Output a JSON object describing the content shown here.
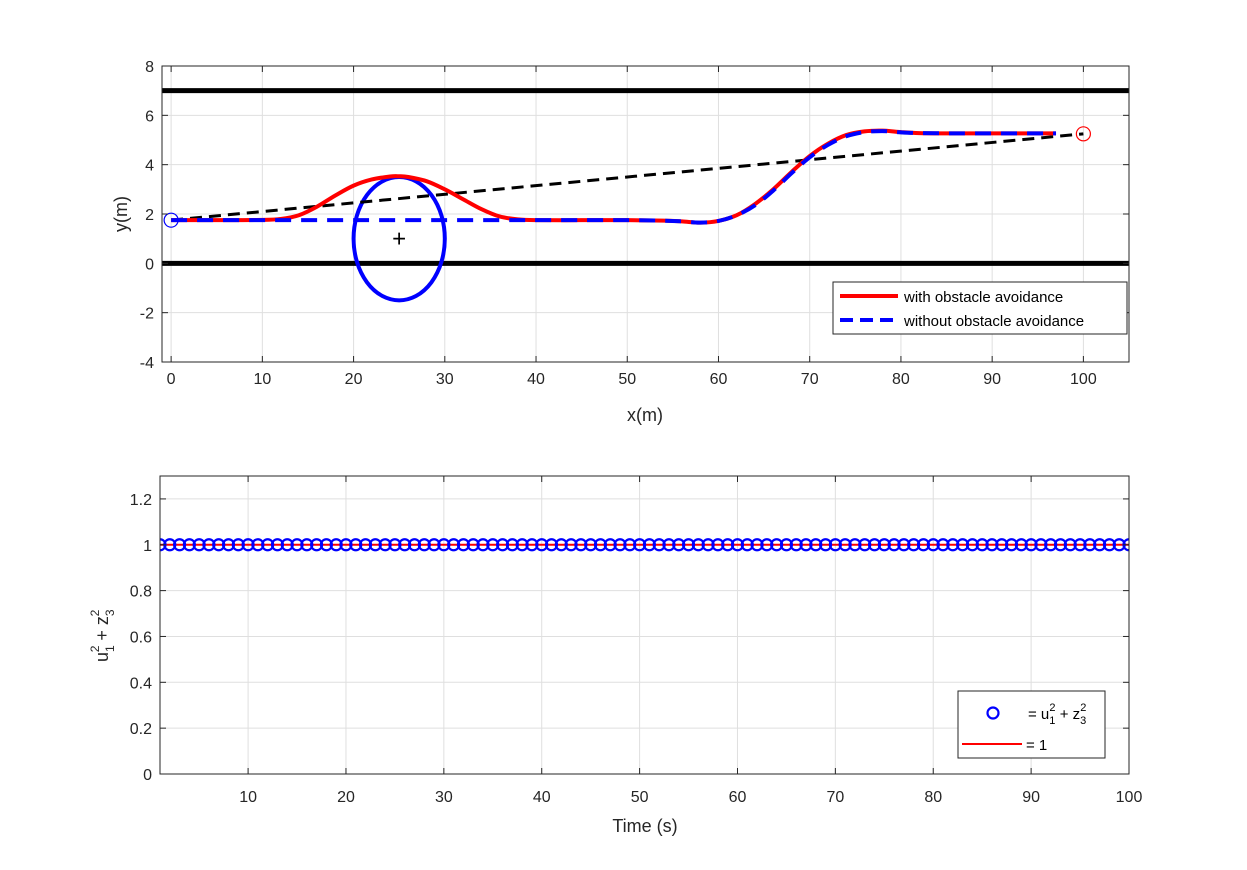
{
  "chart_data": [
    {
      "type": "line",
      "xlabel": "x(m)",
      "ylabel": "y(m)",
      "xlim": [
        -1,
        105
      ],
      "ylim": [
        -4,
        8
      ],
      "xticks": [
        0,
        10,
        20,
        30,
        40,
        50,
        60,
        70,
        80,
        90,
        100
      ],
      "yticks": [
        -4,
        -2,
        0,
        2,
        4,
        6,
        8
      ],
      "grid": true,
      "legend_position": "bottom-right",
      "road_boundaries": [
        {
          "y": 7,
          "x": [
            -1,
            105
          ],
          "color": "#000000"
        },
        {
          "y": 0,
          "x": [
            -1,
            105
          ],
          "color": "#000000"
        }
      ],
      "reference_line": {
        "x": [
          0,
          100
        ],
        "y": [
          1.75,
          5.25
        ],
        "color": "#000000",
        "style": "dashed"
      },
      "obstacle": {
        "center": [
          25,
          1
        ],
        "radius_x": 5,
        "radius_y": 2.5,
        "color": "#0000ff"
      },
      "start_marker": {
        "x": 0,
        "y": 1.75,
        "color": "#0000ff"
      },
      "goal_marker": {
        "x": 100,
        "y": 5.25,
        "color": "#ff0000"
      },
      "series": [
        {
          "name": "with obstacle avoidance",
          "color": "#ff0000",
          "style": "solid",
          "x": [
            0,
            5,
            10,
            12,
            14,
            16,
            18,
            20,
            22,
            24,
            25,
            26,
            28,
            30,
            32,
            34,
            36,
            38,
            40,
            45,
            50,
            54,
            56,
            58,
            60,
            62,
            64,
            66,
            68,
            70,
            72,
            74,
            76,
            78,
            80,
            82,
            85,
            90,
            95,
            97
          ],
          "y": [
            1.75,
            1.75,
            1.76,
            1.8,
            1.95,
            2.3,
            2.75,
            3.15,
            3.4,
            3.52,
            3.53,
            3.5,
            3.33,
            3.0,
            2.6,
            2.2,
            1.9,
            1.78,
            1.75,
            1.75,
            1.75,
            1.73,
            1.7,
            1.65,
            1.72,
            1.95,
            2.4,
            3.0,
            3.7,
            4.35,
            4.85,
            5.2,
            5.35,
            5.38,
            5.32,
            5.28,
            5.27,
            5.27,
            5.27,
            5.27
          ]
        },
        {
          "name": "without obstacle avoidance",
          "color": "#0000ff",
          "style": "dashed",
          "x": [
            0,
            10,
            20,
            30,
            38,
            40,
            45,
            50,
            54,
            56,
            58,
            60,
            62,
            64,
            66,
            68,
            70,
            72,
            74,
            76,
            78,
            80,
            82,
            85,
            90,
            95,
            97
          ],
          "y": [
            1.75,
            1.75,
            1.75,
            1.75,
            1.75,
            1.75,
            1.75,
            1.75,
            1.73,
            1.7,
            1.65,
            1.72,
            1.95,
            2.35,
            2.95,
            3.65,
            4.3,
            4.8,
            5.15,
            5.32,
            5.36,
            5.31,
            5.28,
            5.27,
            5.27,
            5.27,
            5.27
          ]
        }
      ]
    },
    {
      "type": "scatter",
      "xlabel": "Time (s)",
      "ylabel": "u12 + z32",
      "xlim": [
        1,
        100
      ],
      "ylim": [
        0,
        1.3
      ],
      "xticks": [
        10,
        20,
        30,
        40,
        50,
        60,
        70,
        80,
        90,
        100
      ],
      "yticks": [
        0,
        0.2,
        0.4,
        0.6,
        0.8,
        1,
        1.2
      ],
      "grid": true,
      "legend_position": "bottom-right",
      "series": [
        {
          "name": "= u12 + z32",
          "marker": "circle",
          "color": "#0000ff",
          "x_start": 1,
          "x_end": 100,
          "x_step": 1,
          "y": 1
        },
        {
          "name": "= 1",
          "color": "#ff0000",
          "style": "solid",
          "x": [
            1,
            100
          ],
          "y": [
            1,
            1
          ]
        }
      ]
    }
  ],
  "tick_labels": {
    "top_x": [
      "0",
      "10",
      "20",
      "30",
      "40",
      "50",
      "60",
      "70",
      "80",
      "90",
      "100"
    ],
    "top_y": [
      "-4",
      "-2",
      "0",
      "2",
      "4",
      "6",
      "8"
    ],
    "bottom_x": [
      "10",
      "20",
      "30",
      "40",
      "50",
      "60",
      "70",
      "80",
      "90",
      "100"
    ],
    "bottom_y": [
      "0",
      "0.2",
      "0.4",
      "0.6",
      "0.8",
      "1",
      "1.2"
    ]
  },
  "labels": {
    "top_xlabel": "x(m)",
    "top_ylabel": "y(m)",
    "bottom_xlabel": "Time (s)",
    "legend_top_1": "with obstacle avoidance",
    "legend_top_2": "without obstacle avoidance",
    "legend_bottom_eq": "= 1",
    "obstacle_center_mark": "+"
  }
}
